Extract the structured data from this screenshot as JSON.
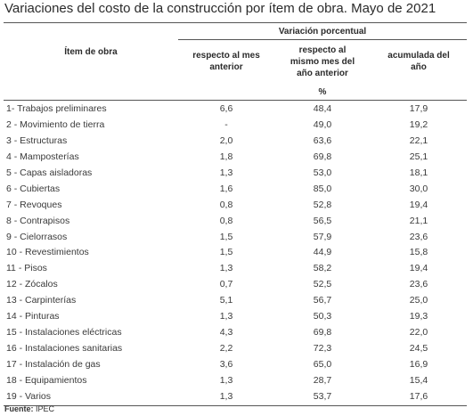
{
  "title": "Variaciones del costo de la construcción por ítem de obra. Mayo de 2021",
  "header": {
    "item": "Ítem de obra",
    "group": "Variación porcentual",
    "col1": "respecto al mes\nanterior",
    "col2": "respecto al\nmismo mes del\naño anterior",
    "col3": "acumulada del\naño",
    "unit": "%"
  },
  "rows": [
    {
      "item": "1- Trabajos preliminares",
      "v1": "6,6",
      "v2": "48,4",
      "v3": "17,9"
    },
    {
      "item": "2 - Movimiento de tierra",
      "v1": "-",
      "v2": "49,0",
      "v3": "19,2"
    },
    {
      "item": "3 - Estructuras",
      "v1": "2,0",
      "v2": "63,6",
      "v3": "22,1"
    },
    {
      "item": "4 - Mamposterías",
      "v1": "1,8",
      "v2": "69,8",
      "v3": "25,1"
    },
    {
      "item": "5 - Capas aisladoras",
      "v1": "1,3",
      "v2": "53,0",
      "v3": "18,1"
    },
    {
      "item": "6 - Cubiertas",
      "v1": "1,6",
      "v2": "85,0",
      "v3": "30,0"
    },
    {
      "item": "7 - Revoques",
      "v1": "0,8",
      "v2": "52,8",
      "v3": "19,4"
    },
    {
      "item": "8 - Contrapisos",
      "v1": "0,8",
      "v2": "56,5",
      "v3": "21,1"
    },
    {
      "item": "9 - Cielorrasos",
      "v1": "1,5",
      "v2": "57,9",
      "v3": "23,6"
    },
    {
      "item": "10 - Revestimientos",
      "v1": "1,5",
      "v2": "44,9",
      "v3": "15,8"
    },
    {
      "item": "11 - Pisos",
      "v1": "1,3",
      "v2": "58,2",
      "v3": "19,4"
    },
    {
      "item": "12 - Zócalos",
      "v1": "0,7",
      "v2": "52,5",
      "v3": "23,6"
    },
    {
      "item": "13 - Carpinterías",
      "v1": "5,1",
      "v2": "56,7",
      "v3": "25,0"
    },
    {
      "item": "14 - Pinturas",
      "v1": "1,3",
      "v2": "50,3",
      "v3": "19,3"
    },
    {
      "item": "15 - Instalaciones eléctricas",
      "v1": "4,3",
      "v2": "69,8",
      "v3": "22,0"
    },
    {
      "item": "16 - Instalaciones sanitarias",
      "v1": "2,2",
      "v2": "72,3",
      "v3": "24,5"
    },
    {
      "item": "17 - Instalación de gas",
      "v1": "3,6",
      "v2": "65,0",
      "v3": "16,9"
    },
    {
      "item": "18 - Equipamientos",
      "v1": "1,3",
      "v2": "28,7",
      "v3": "15,4"
    },
    {
      "item": "19 - Varios",
      "v1": "1,3",
      "v2": "53,7",
      "v3": "17,6"
    }
  ],
  "source": {
    "label": "Fuente:",
    "text": " IPEC"
  }
}
